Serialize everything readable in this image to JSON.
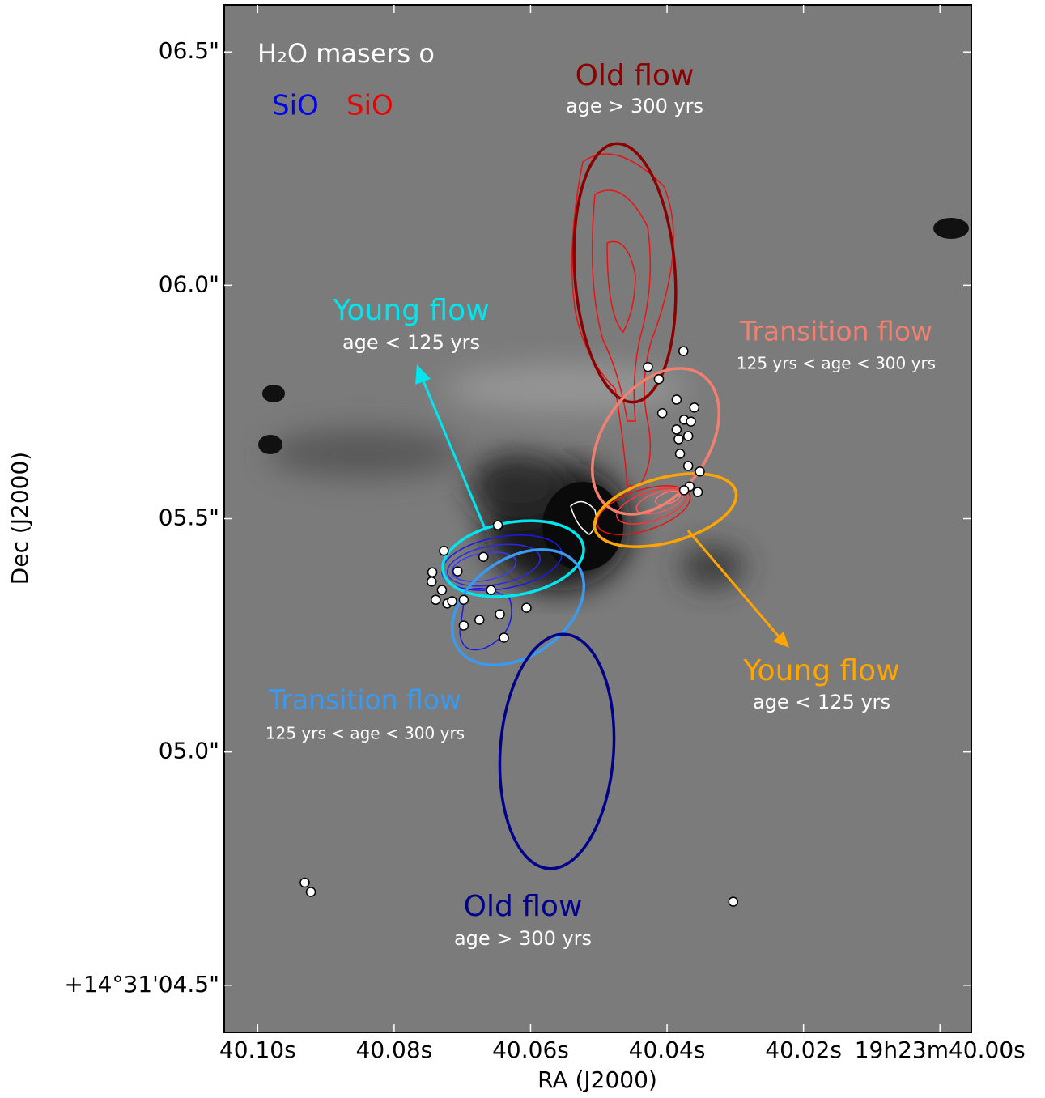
{
  "chart_data": {
    "type": "scatter",
    "title": "H₂O masers o",
    "legend": [
      "SiO",
      "SiO"
    ],
    "legend_colors": [
      "#0000ee",
      "#ee0000"
    ],
    "x_label": "RA (J2000)",
    "y_label": "Dec (J2000)",
    "xlim": [
      40.1049,
      39.9954
    ],
    "ylim": [
      4.399,
      6.601
    ],
    "xticks": [
      {
        "value": 40.1,
        "label": "40.10s"
      },
      {
        "value": 40.08,
        "label": "40.08s"
      },
      {
        "value": 40.06,
        "label": "40.06s"
      },
      {
        "value": 40.04,
        "label": "40.04s"
      },
      {
        "value": 40.02,
        "label": "40.02s"
      },
      {
        "value": 40.0,
        "label": "19h23m40.00s"
      }
    ],
    "yticks": [
      {
        "value": 6.5,
        "label": "06.5\""
      },
      {
        "value": 6.0,
        "label": "06.0\""
      },
      {
        "value": 5.5,
        "label": "05.5\""
      },
      {
        "value": 5.0,
        "label": "05.0\""
      },
      {
        "value": 4.5,
        "label": "+14°31'04.5\""
      }
    ],
    "marker_color": "#ffffff",
    "x": [
      40.0376,
      40.0428,
      40.0412,
      40.0386,
      40.036,
      40.0407,
      40.0375,
      40.0365,
      40.0386,
      40.0383,
      40.0369,
      40.0381,
      40.0369,
      40.0352,
      40.0355,
      40.0367,
      40.0375,
      40.0648,
      40.0669,
      40.0727,
      40.0744,
      40.0707,
      40.0745,
      40.073,
      40.0739,
      40.0722,
      40.0715,
      40.0698,
      40.0658,
      40.0645,
      40.0675,
      40.0698,
      40.0606,
      40.0639,
      40.0931,
      40.0922,
      40.0303
    ],
    "y": [
      5.859,
      5.825,
      5.799,
      5.755,
      5.738,
      5.726,
      5.712,
      5.708,
      5.691,
      5.67,
      5.677,
      5.639,
      5.613,
      5.601,
      5.557,
      5.569,
      5.561,
      5.486,
      5.418,
      5.431,
      5.385,
      5.387,
      5.365,
      5.347,
      5.326,
      5.318,
      5.323,
      5.326,
      5.347,
      5.295,
      5.283,
      5.271,
      5.309,
      5.245,
      4.72,
      4.7,
      4.679
    ],
    "annotations": [
      {
        "label": "Old flow",
        "note": "age > 300 yrs"
      },
      {
        "label": "Young flow",
        "note": "age < 125 yrs"
      },
      {
        "label": "Transition flow",
        "note": "125 yrs < age < 300 yrs"
      },
      {
        "label": "Young flow",
        "note": "age < 125 yrs"
      },
      {
        "label": "Transition flow",
        "note": "125 yrs < age < 300 yrs"
      },
      {
        "label": "Old flow",
        "note": "age > 300 yrs"
      }
    ]
  }
}
